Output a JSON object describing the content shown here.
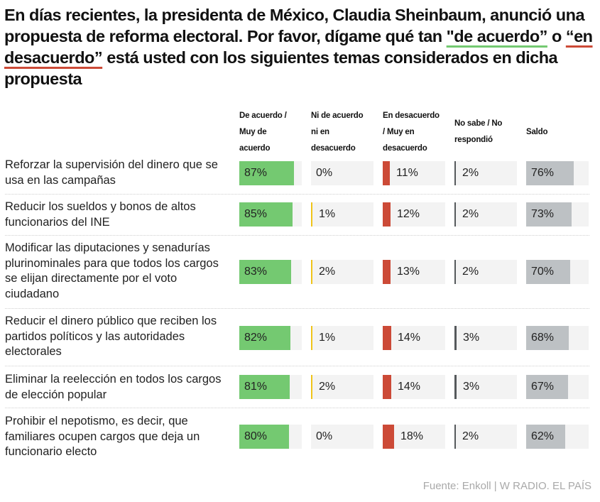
{
  "title": {
    "part1": "En días recientes, la presidenta de México, Claudia Sheinbaum, anunció una propuesta de reforma electoral. Por favor, dígame qué tan ",
    "agree": "\"de acuerdo”",
    "mid": " o ",
    "disagree": "“en desacuerdo”",
    "part2": " está usted con los siguientes temas considerados en dicha propuesta"
  },
  "colors": {
    "agree": "#74c971",
    "neutral": "#f0c419",
    "disagree": "#cc4a37",
    "unknown": "#55595c",
    "balance": "#bdc1c4",
    "track": "#f3f3f3"
  },
  "chart_data": {
    "type": "table",
    "title": "En días recientes, la presidenta de México, Claudia Sheinbaum, anunció una propuesta de reforma electoral. Por favor, dígame qué tan \"de acuerdo” o “en desacuerdo” está usted con los siguientes temas considerados en dicha propuesta",
    "columns": [
      "De acuerdo / Muy de acuerdo",
      "Ni de acuerdo ni en desacuerdo",
      "En desacuerdo / Muy en desacuerdo",
      "No sabe / No respondió",
      "Saldo"
    ],
    "columns_lines": [
      [
        "De acuerdo /",
        "Muy de",
        "acuerdo"
      ],
      [
        "Ni de acuerdo",
        "ni en",
        "desacuerdo"
      ],
      [
        "En desacuerdo",
        "/ Muy en",
        "desacuerdo"
      ],
      [
        "No sabe / No",
        "respondió"
      ],
      [
        "Saldo"
      ]
    ],
    "unit": "%",
    "rows": [
      {
        "label": "Reforzar la supervisión del dinero que se usa en las campañas",
        "values": [
          87,
          0,
          11,
          2,
          76
        ]
      },
      {
        "label": "Reducir los sueldos y bonos de altos funcionarios del INE",
        "values": [
          85,
          1,
          12,
          2,
          73
        ]
      },
      {
        "label": "Modificar las diputaciones y senadurías plurinominales para que todos los cargos se elijan directamente por el voto ciudadano",
        "values": [
          83,
          2,
          13,
          2,
          70
        ]
      },
      {
        "label": "Reducir el dinero público que reciben los partidos políticos y las autoridades electorales",
        "values": [
          82,
          1,
          14,
          3,
          68
        ]
      },
      {
        "label": "Eliminar la reelección en todos los cargos de elección popular",
        "values": [
          81,
          2,
          14,
          3,
          67
        ]
      },
      {
        "label": "Prohibir el nepotismo, es decir, que familiares ocupen cargos que deja un funcionario electo",
        "values": [
          80,
          0,
          18,
          2,
          62
        ]
      }
    ]
  },
  "source": "Fuente: Enkoll | W RADIO. EL PAÍS"
}
